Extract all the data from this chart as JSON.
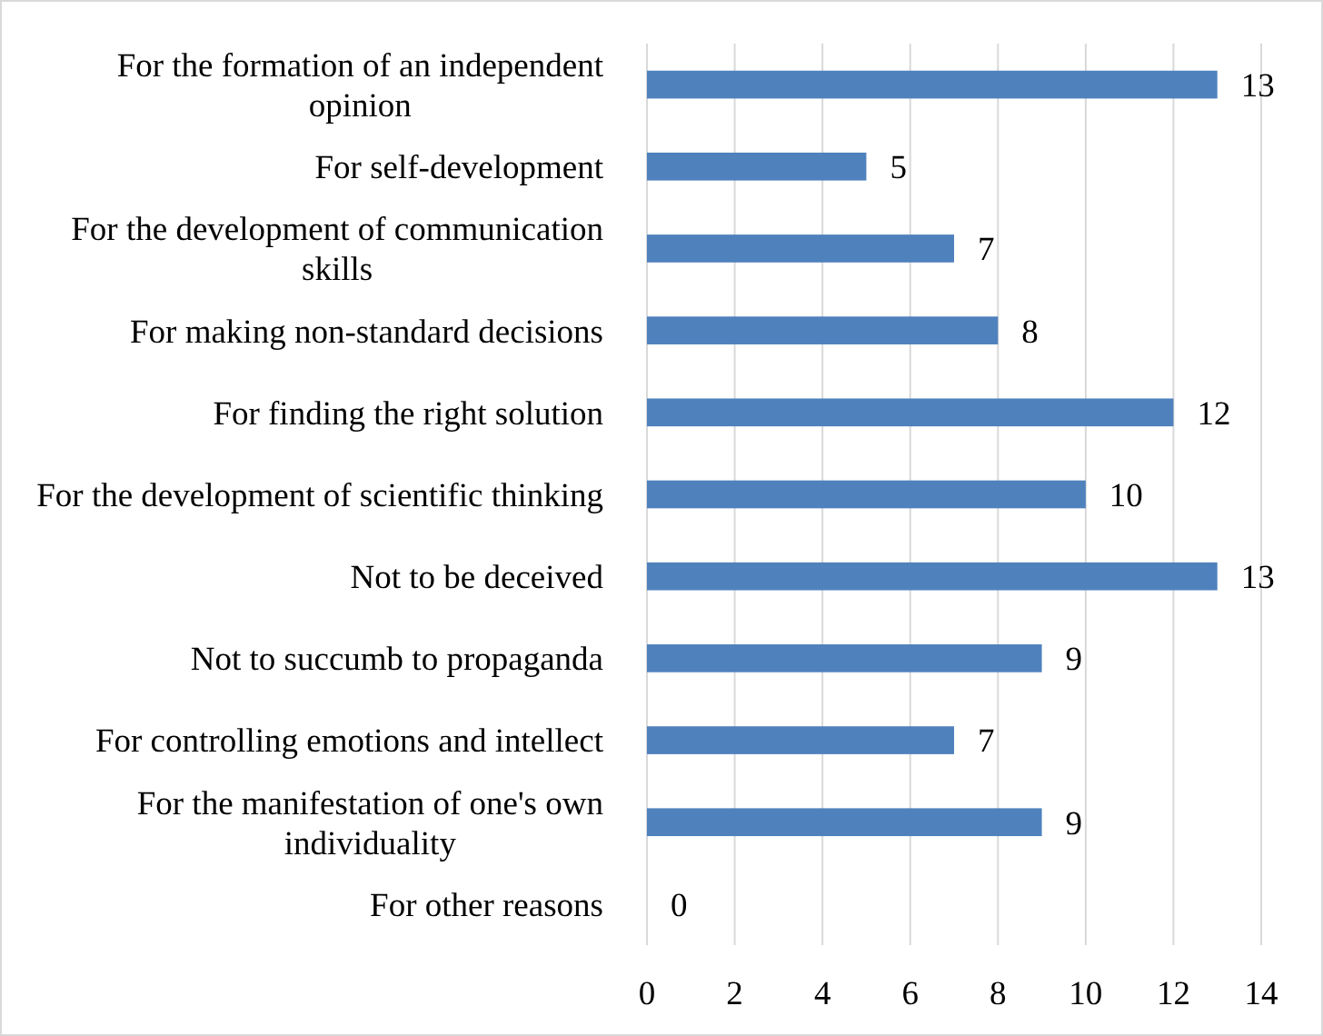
{
  "chart_data": {
    "type": "bar",
    "orientation": "horizontal",
    "categories": [
      "For the formation of an independent opinion",
      "For self-development",
      "For the development of communication skills",
      "For making non-standard decisions",
      "For finding the right solution",
      "For the development of scientific thinking",
      "Not to be deceived",
      "Not to succumb to propaganda",
      "For controlling emotions and intellect",
      "For the manifestation of one's own individuality",
      "For other reasons"
    ],
    "values": [
      13,
      5,
      7,
      8,
      12,
      10,
      13,
      9,
      7,
      9,
      0
    ],
    "color": "#4f81bd",
    "xlim": [
      0,
      14
    ],
    "xticks": [
      0,
      2,
      4,
      6,
      8,
      10,
      12,
      14
    ],
    "grid": "x",
    "data_labels": true
  }
}
